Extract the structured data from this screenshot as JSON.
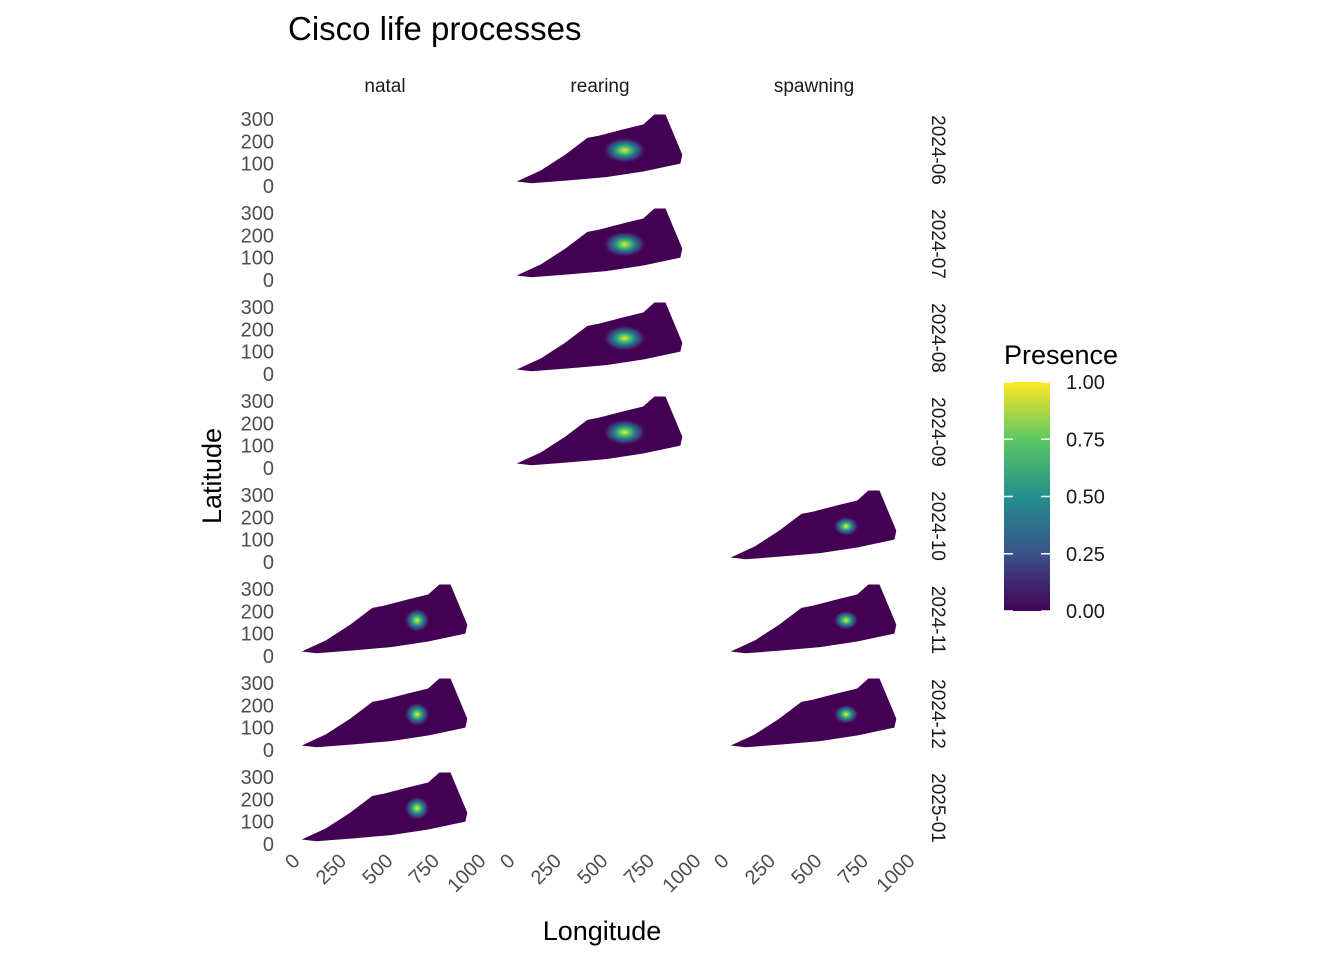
{
  "chart_data": {
    "type": "heatmap",
    "title": "Cisco life processes",
    "xlabel": "Longitude",
    "ylabel": "Latitude",
    "xlim": [
      0,
      1000
    ],
    "ylim": [
      0,
      340
    ],
    "x_ticks": [
      0,
      250,
      500,
      750,
      1000
    ],
    "x_tick_labels": [
      "0",
      "250",
      "500",
      "750",
      "1000"
    ],
    "y_ticks": [
      0,
      100,
      200,
      300
    ],
    "y_tick_labels": [
      "0",
      "100",
      "200",
      "300"
    ],
    "facet_columns": [
      "natal",
      "rearing",
      "spawning"
    ],
    "facet_rows": [
      "2024-06",
      "2024-07",
      "2024-08",
      "2024-09",
      "2024-10",
      "2024-11",
      "2024-12",
      "2025-01"
    ],
    "panels_present": {
      "natal": [
        "2024-11",
        "2024-12",
        "2025-01"
      ],
      "rearing": [
        "2024-06",
        "2024-07",
        "2024-08",
        "2024-09"
      ],
      "spawning": [
        "2024-10",
        "2024-11",
        "2024-12"
      ]
    },
    "hotspot_center": {
      "natal": [
        640,
        160
      ],
      "rearing": [
        600,
        160
      ],
      "spawning": [
        640,
        160
      ]
    },
    "hotspot_spread": {
      "natal": [
        70,
        55
      ],
      "rearing": [
        120,
        60
      ],
      "spawning": [
        70,
        45
      ]
    },
    "lake_outline": [
      [
        20,
        20
      ],
      [
        150,
        70
      ],
      [
        280,
        140
      ],
      [
        400,
        215
      ],
      [
        460,
        225
      ],
      [
        600,
        255
      ],
      [
        700,
        275
      ],
      [
        760,
        320
      ],
      [
        820,
        320
      ],
      [
        880,
        200
      ],
      [
        910,
        140
      ],
      [
        900,
        100
      ],
      [
        700,
        65
      ],
      [
        500,
        40
      ],
      [
        300,
        25
      ],
      [
        100,
        12
      ],
      [
        20,
        20
      ]
    ],
    "legend": {
      "title": "Presence",
      "position": "right",
      "ticks": [
        0,
        0.25,
        0.5,
        0.75,
        1
      ],
      "tick_labels": [
        "0.00",
        "0.25",
        "0.50",
        "0.75",
        "1.00"
      ],
      "colormap": "viridis",
      "colors": [
        "#440154",
        "#3b528b",
        "#21908c",
        "#5dc863",
        "#fde725"
      ]
    },
    "grid": false
  }
}
